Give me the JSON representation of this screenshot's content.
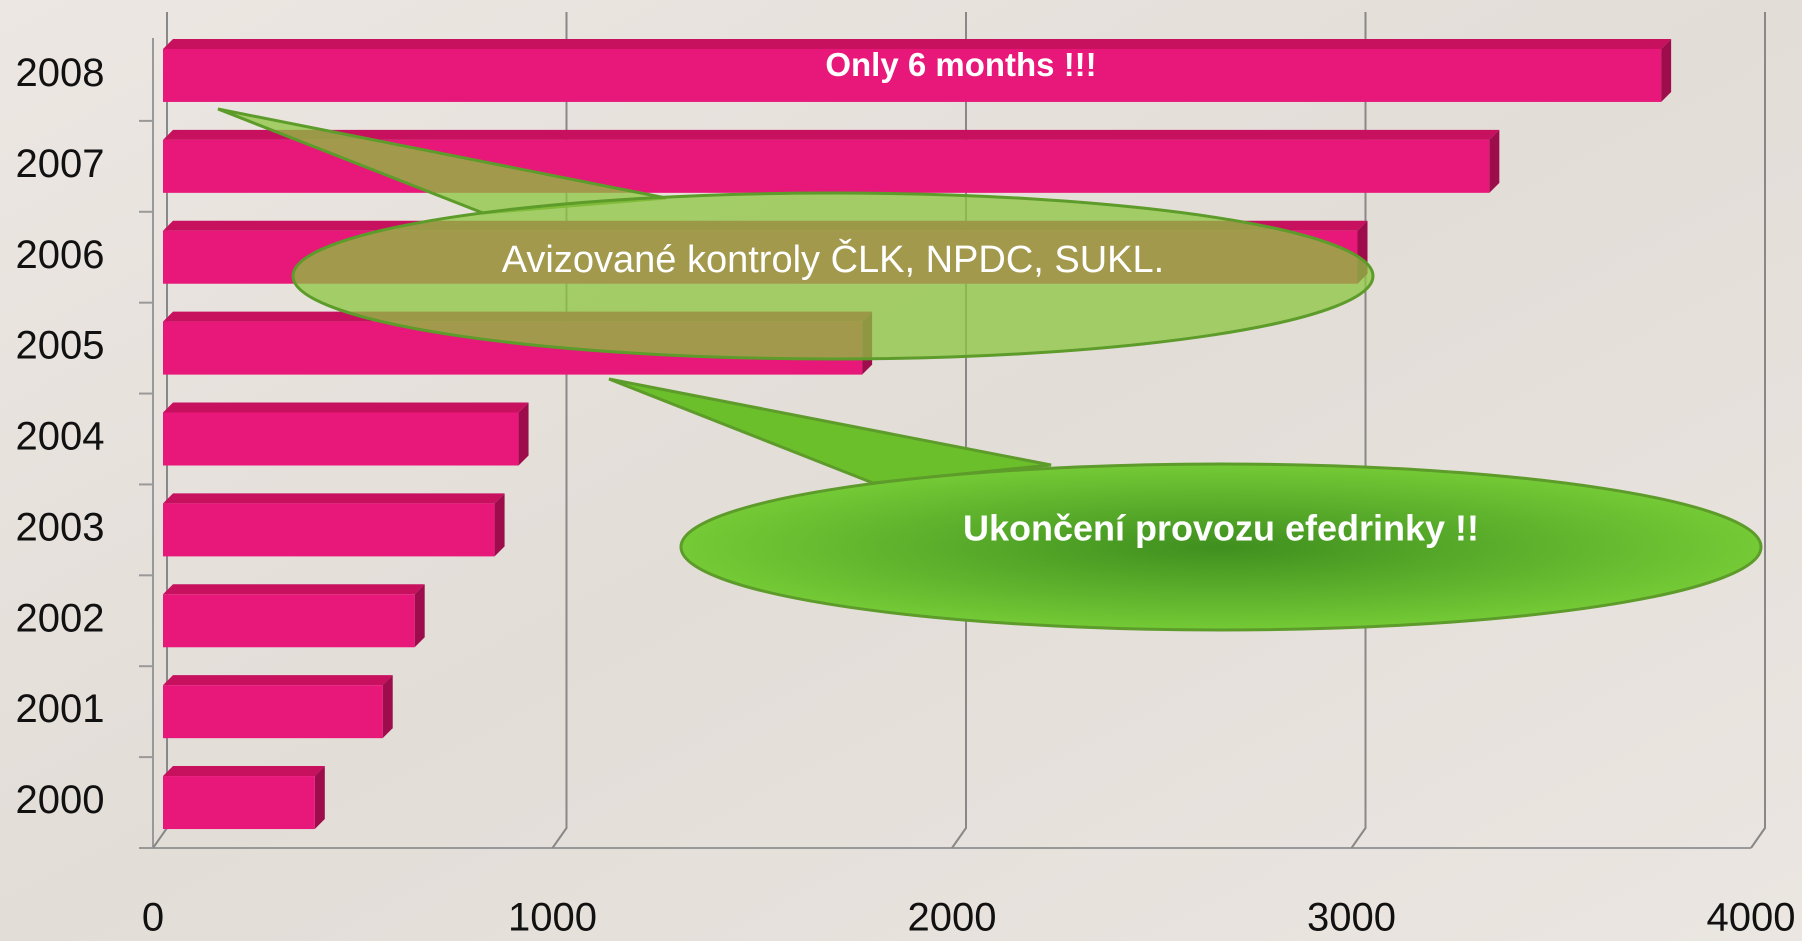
{
  "chart_data": {
    "type": "bar",
    "orientation": "horizontal",
    "categories": [
      "2000",
      "2001",
      "2002",
      "2003",
      "2004",
      "2005",
      "2006",
      "2007",
      "2008"
    ],
    "values": [
      380,
      550,
      630,
      830,
      890,
      1750,
      2990,
      3320,
      3750
    ],
    "color": "#e8177a",
    "xlim": [
      0,
      4000
    ],
    "xticks": [
      0,
      1000,
      2000,
      3000,
      4000
    ],
    "grid": true,
    "annotations": [
      "Only 6 months !!!",
      "Avizované kontroly ČLK, NPDC, SUKL.",
      "Ukončení provozu efedrinky !!"
    ]
  }
}
